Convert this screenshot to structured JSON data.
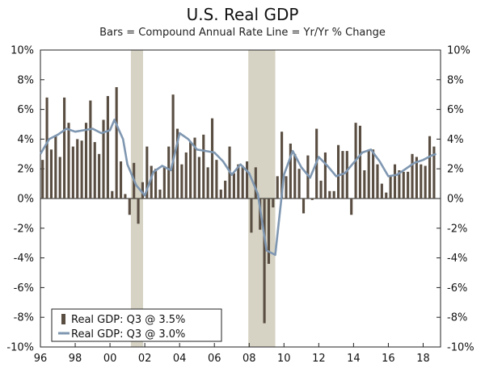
{
  "title": "U.S. Real GDP",
  "subtitle": "Bars = Compound Annual Rate     Line = Yr/Yr % Change",
  "chart_data": {
    "type": "bar",
    "title": "U.S. Real GDP",
    "subtitle": "Bars = Compound Annual Rate     Line = Yr/Yr % Change",
    "xlabel": "",
    "ylabel": "",
    "x_start_year": 1996,
    "x_end_year": 2019,
    "ylim": [
      -10,
      10
    ],
    "y_ticks": [
      10,
      8,
      6,
      4,
      2,
      0,
      -2,
      -4,
      -6,
      -8,
      -10
    ],
    "y_tick_labels": [
      "10%",
      "8%",
      "6%",
      "4%",
      "2%",
      "0%",
      "-2%",
      "-4%",
      "-6%",
      "-8%",
      "-10%"
    ],
    "x_ticks": [
      1996,
      1998,
      2000,
      2002,
      2004,
      2006,
      2008,
      2010,
      2012,
      2014,
      2016,
      2018
    ],
    "x_tick_labels": [
      "96",
      "98",
      "00",
      "02",
      "04",
      "06",
      "08",
      "10",
      "12",
      "14",
      "16",
      "18"
    ],
    "recessions": [
      [
        2001.2,
        2001.9
      ],
      [
        2007.95,
        2009.5
      ]
    ],
    "legend": {
      "position": "bottom-left",
      "entries": [
        "Real GDP: Q3 @ 3.5%",
        "Real GDP: Q3 @ 3.0%"
      ]
    },
    "series": [
      {
        "name": "Real GDP: Q3 @ 3.5%",
        "kind": "bar",
        "color": "#5a4e42",
        "values": [
          2.6,
          6.8,
          3.3,
          4.2,
          2.8,
          6.8,
          5.1,
          3.5,
          4.0,
          3.9,
          5.1,
          6.6,
          3.8,
          3.0,
          5.3,
          6.9,
          0.5,
          7.5,
          2.5,
          0.3,
          -1.1,
          2.4,
          -1.7,
          1.1,
          3.5,
          2.2,
          2.0,
          0.6,
          2.1,
          3.5,
          7.0,
          4.7,
          2.3,
          3.1,
          3.8,
          4.1,
          2.8,
          4.3,
          2.1,
          5.4,
          2.6,
          0.6,
          1.2,
          3.5,
          1.7,
          2.3,
          2.2,
          2.5,
          -2.3,
          2.1,
          -2.1,
          -8.4,
          -4.4,
          -0.6,
          1.5,
          4.5,
          1.5,
          3.7,
          3.0,
          2.0,
          -1.0,
          2.9,
          -0.1,
          4.7,
          1.2,
          3.1,
          0.5,
          0.5,
          3.6,
          3.2,
          3.2,
          -1.1,
          5.1,
          4.9,
          1.9,
          3.3,
          3.3,
          2.3,
          1.0,
          0.4,
          1.5,
          2.3,
          1.9,
          1.8,
          1.8,
          3.0,
          2.8,
          2.3,
          2.2,
          4.2,
          3.5
        ]
      },
      {
        "name": "Real GDP: Q3 @ 3.0%",
        "kind": "line",
        "color": "#7f97b1",
        "x": [
          1996.0,
          1996.5,
          1997.0,
          1997.5,
          1998.0,
          1998.5,
          1999.0,
          1999.5,
          2000.0,
          2000.25,
          2000.75,
          2001.0,
          2001.5,
          2002.0,
          2002.5,
          2003.0,
          2003.5,
          2004.0,
          2004.5,
          2005.0,
          2005.5,
          2006.0,
          2006.5,
          2007.0,
          2007.5,
          2008.0,
          2008.5,
          2009.0,
          2009.5,
          2010.0,
          2010.5,
          2011.0,
          2011.5,
          2012.0,
          2012.5,
          2013.0,
          2013.5,
          2014.0,
          2014.5,
          2015.0,
          2015.5,
          2016.0,
          2016.5,
          2017.0,
          2017.5,
          2018.0,
          2018.5,
          2018.75
        ],
        "values": [
          3.0,
          4.0,
          4.3,
          4.7,
          4.5,
          4.6,
          4.7,
          4.4,
          4.6,
          5.3,
          4.0,
          2.3,
          0.9,
          0.2,
          1.8,
          2.2,
          1.9,
          4.4,
          4.0,
          3.3,
          3.2,
          3.1,
          2.5,
          1.6,
          2.3,
          1.7,
          0.3,
          -3.5,
          -3.8,
          1.6,
          3.2,
          2.1,
          1.4,
          2.8,
          2.2,
          1.5,
          1.7,
          2.4,
          3.1,
          3.3,
          2.5,
          1.5,
          1.6,
          2.0,
          2.4,
          2.6,
          2.9,
          3.0
        ]
      }
    ]
  }
}
